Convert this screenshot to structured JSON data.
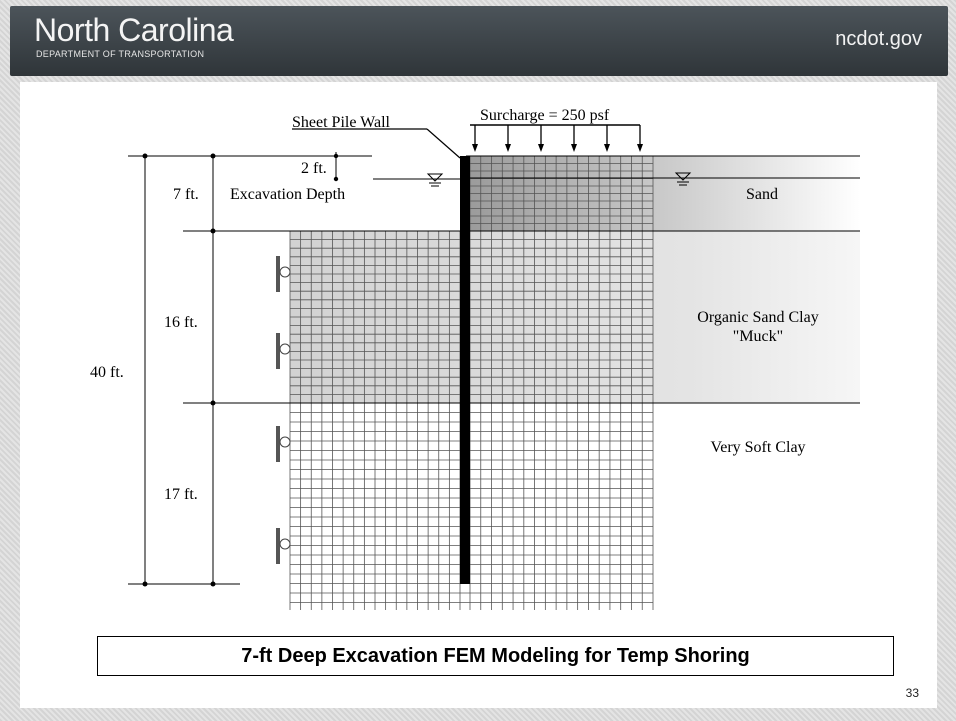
{
  "header": {
    "brand_title": "North Carolina",
    "brand_subtitle": "DEPARTMENT OF TRANSPORTATION",
    "site": "ncdot.gov"
  },
  "diagram": {
    "sheet_pile_label": "Sheet Pile Wall",
    "surcharge_label": "Surcharge = 250 psf",
    "dim_2ft": "2 ft.",
    "dim_7ft": "7 ft.",
    "excavation_label": "Excavation Depth",
    "dim_16ft": "16 ft.",
    "dim_17ft": "17 ft.",
    "dim_40ft": "40 ft.",
    "layer_sand": "Sand",
    "layer_organic_1": "Organic Sand Clay",
    "layer_organic_2": "\"Muck\"",
    "layer_soft_clay": "Very Soft Clay"
  },
  "caption": "7-ft Deep Excavation FEM Modeling for Temp Shoring",
  "page_number": "33",
  "colors": {
    "header_bg": "#3a4147",
    "mesh_line": "#555555",
    "sheet_pile": "#000000"
  }
}
